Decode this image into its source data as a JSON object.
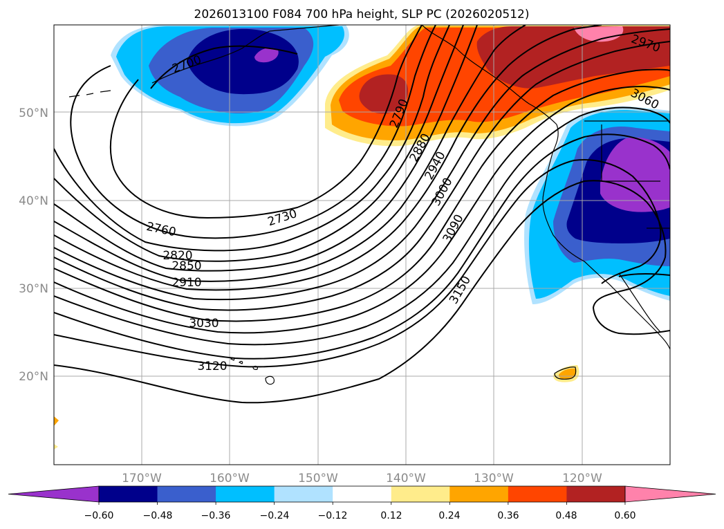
{
  "title": "2026013100 F084 700 hPa height, SLP PC (2026020512)",
  "lat_labels": [
    "50°N",
    "40°N",
    "30°N",
    "20°N"
  ],
  "lon_labels": [
    "170°W",
    "160°W",
    "150°W",
    "140°W",
    "130°W",
    "120°W"
  ],
  "contour_labels": [
    "2700",
    "2730",
    "2760",
    "2790",
    "2820",
    "2850",
    "2880",
    "2910",
    "2940",
    "2970",
    "3000",
    "3030",
    "3060",
    "3090",
    "3120",
    "3150"
  ],
  "colorbar": {
    "tick_labels": [
      "−0.60",
      "−0.48",
      "−0.36",
      "−0.24",
      "−0.12",
      "0.12",
      "0.24",
      "0.36",
      "0.48",
      "0.60"
    ],
    "colors": [
      "#9932cc",
      "#00008b",
      "#3a5fcd",
      "#00bfff",
      "#b0e2ff",
      "#ffffff",
      "#ffec8b",
      "#ffa500",
      "#ff4500",
      "#b22222",
      "#ff82ab"
    ]
  }
}
